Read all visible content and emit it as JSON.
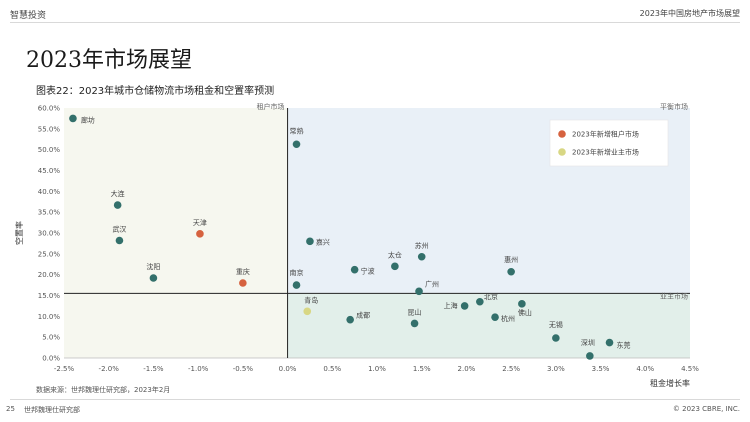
{
  "header": {
    "left": "智慧投资",
    "right": "2023年中国房地产市场展望"
  },
  "page_title": "2023年市场展望",
  "footer": {
    "page": "25",
    "left": "世邦魏理仕研究部",
    "right": "© 2023 CBRE, INC."
  },
  "colors": {
    "tenant_zone": "#f6f7ef",
    "balanced_zone": "#e9f0f7",
    "landlord_zone": "#e2efea",
    "existing_point": "#33706b",
    "new_tenant": "#d6623f",
    "new_landlord": "#d8d784"
  },
  "chart_data": {
    "type": "scatter",
    "title": "图表22：2023年城市仓储物流市场租金和空置率预测",
    "xlabel": "租金增长率",
    "ylabel": "空置率",
    "xlim": [
      -0.025,
      0.045
    ],
    "ylim": [
      0,
      0.6
    ],
    "xticks": [
      "-2.5%",
      "-2.0%",
      "-1.5%",
      "-1.0%",
      "-0.5%",
      "0.0%",
      "0.5%",
      "1.0%",
      "1.5%",
      "2.0%",
      "2.5%",
      "3.0%",
      "3.5%",
      "4.0%",
      "4.5%"
    ],
    "yticks": [
      "0.0%",
      "5.0%",
      "10.0%",
      "15.0%",
      "20.0%",
      "25.0%",
      "30.0%",
      "35.0%",
      "40.0%",
      "45.0%",
      "50.0%",
      "55.0%",
      "60.0%"
    ],
    "divider_x": 0.0,
    "divider_y": 0.155,
    "zone_labels": {
      "tenant": "租户市场",
      "balanced": "平衡市场",
      "landlord": "业主市场"
    },
    "legend": {
      "position": "top-right",
      "entries": [
        {
          "label": "2023年新增租户市场",
          "category": "new_tenant"
        },
        {
          "label": "2023年新增业主市场",
          "category": "new_landlord"
        }
      ]
    },
    "points": [
      {
        "name": "廊坊",
        "x": -0.024,
        "y": 0.575,
        "category": "existing"
      },
      {
        "name": "大连",
        "x": -0.019,
        "y": 0.367,
        "category": "existing"
      },
      {
        "name": "武汉",
        "x": -0.0188,
        "y": 0.282,
        "category": "existing"
      },
      {
        "name": "沈阳",
        "x": -0.015,
        "y": 0.192,
        "category": "existing"
      },
      {
        "name": "天津",
        "x": -0.0098,
        "y": 0.298,
        "category": "new_tenant"
      },
      {
        "name": "重庆",
        "x": -0.005,
        "y": 0.18,
        "category": "new_tenant"
      },
      {
        "name": "常熟",
        "x": 0.001,
        "y": 0.513,
        "category": "existing"
      },
      {
        "name": "嘉兴",
        "x": 0.0025,
        "y": 0.28,
        "category": "existing"
      },
      {
        "name": "南京",
        "x": 0.001,
        "y": 0.175,
        "category": "existing"
      },
      {
        "name": "宁波",
        "x": 0.0075,
        "y": 0.212,
        "category": "existing"
      },
      {
        "name": "太仓",
        "x": 0.012,
        "y": 0.22,
        "category": "existing"
      },
      {
        "name": "苏州",
        "x": 0.015,
        "y": 0.243,
        "category": "existing"
      },
      {
        "name": "广州",
        "x": 0.0147,
        "y": 0.16,
        "category": "existing"
      },
      {
        "name": "惠州",
        "x": 0.025,
        "y": 0.207,
        "category": "existing"
      },
      {
        "name": "青岛",
        "x": 0.0022,
        "y": 0.112,
        "category": "new_landlord"
      },
      {
        "name": "成都",
        "x": 0.007,
        "y": 0.092,
        "category": "existing"
      },
      {
        "name": "昆山",
        "x": 0.0142,
        "y": 0.083,
        "category": "existing"
      },
      {
        "name": "上海",
        "x": 0.0198,
        "y": 0.125,
        "category": "existing"
      },
      {
        "name": "北京",
        "x": 0.0215,
        "y": 0.135,
        "category": "existing"
      },
      {
        "name": "杭州",
        "x": 0.0232,
        "y": 0.098,
        "category": "existing"
      },
      {
        "name": "佛山",
        "x": 0.0262,
        "y": 0.13,
        "category": "existing"
      },
      {
        "name": "无锡",
        "x": 0.03,
        "y": 0.048,
        "category": "existing"
      },
      {
        "name": "深圳",
        "x": 0.0338,
        "y": 0.005,
        "category": "existing"
      },
      {
        "name": "东莞",
        "x": 0.036,
        "y": 0.037,
        "category": "existing"
      }
    ]
  },
  "source": "数据来源：世邦魏理仕研究部，2023年2月"
}
